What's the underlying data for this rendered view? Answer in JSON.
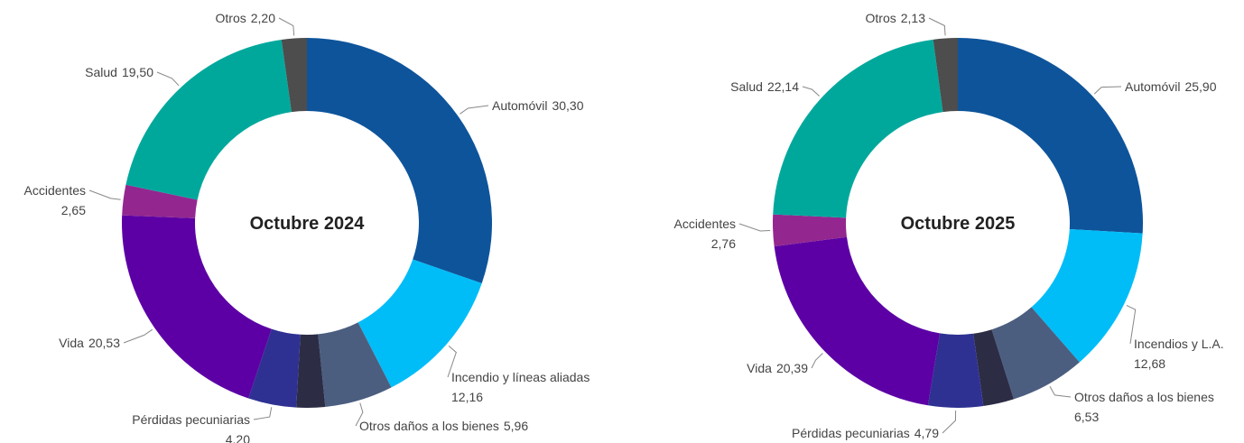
{
  "chart_data": [
    {
      "type": "donut",
      "title": "Octubre 2024",
      "categories": [
        "Automóvil",
        "Incendio y líneas aliadas",
        "Otros daños a los bienes",
        null,
        "Pérdidas pecuniarias",
        "Vida",
        "Accidentes",
        "Salud",
        "Otros"
      ],
      "values": [
        30.3,
        12.16,
        5.96,
        2.5,
        4.2,
        20.53,
        2.65,
        19.5,
        2.2
      ],
      "value_labels": [
        "30,30",
        "12,16",
        "5,96",
        null,
        "4,20",
        "20,53",
        "2,65",
        "19,50",
        "2,20"
      ],
      "colors": [
        "#0e549b",
        "#00bdf8",
        "#4b5e80",
        "#2c2c45",
        "#2e3192",
        "#5c00a5",
        "#93278f",
        "#00a89c",
        "#4d4d4d"
      ]
    },
    {
      "type": "donut",
      "title": "Octubre 2025",
      "categories": [
        "Automóvil",
        "Incendios y L.A.",
        "Otros daños a los bienes",
        null,
        "Pérdidas pecuniarias",
        "Vida",
        "Accidentes",
        "Salud",
        "Otros"
      ],
      "values": [
        25.9,
        12.68,
        6.53,
        2.68,
        4.79,
        20.39,
        2.76,
        22.14,
        2.13
      ],
      "value_labels": [
        "25,90",
        "12,68",
        "6,53",
        null,
        "4,79",
        "20,39",
        "2,76",
        "22,14",
        "2,13"
      ],
      "colors": [
        "#0e549b",
        "#00bdf8",
        "#4b5e80",
        "#2c2c45",
        "#2e3192",
        "#5c00a5",
        "#93278f",
        "#00a89c",
        "#4d4d4d"
      ]
    }
  ]
}
